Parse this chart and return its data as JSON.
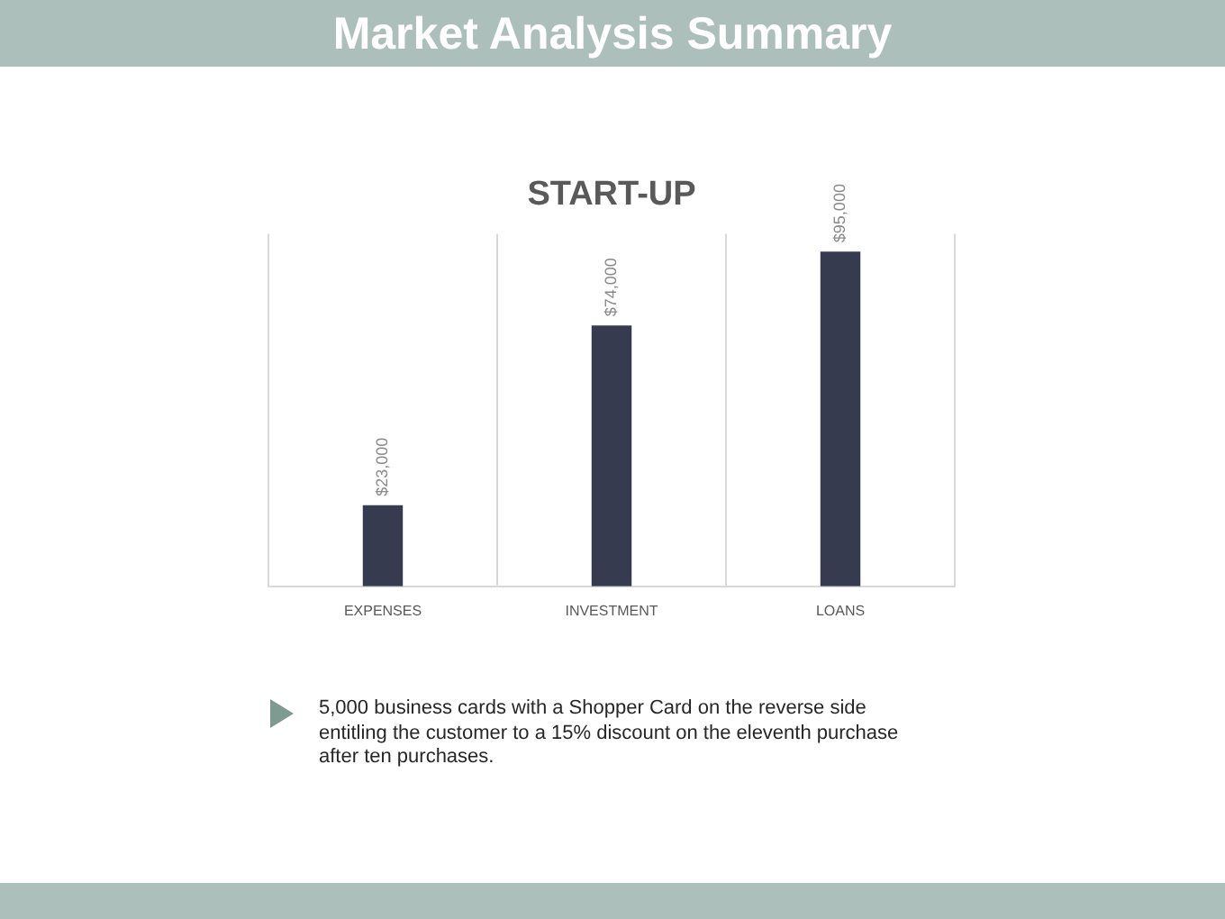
{
  "chart_data": {
    "type": "bar",
    "title": "Market Analysis Summary",
    "subtitle": "START-UP",
    "categories": [
      "EXPENSES",
      "INVESTMENT",
      "LOANS"
    ],
    "values": [
      23000,
      74000,
      95000
    ],
    "color": "#373b4f",
    "value_labels": [
      "$23,000",
      "$74,000",
      "$95,000"
    ],
    "grid": "x",
    "tick_labels": "x",
    "annotations": [
      "5,000 business cards with a Shopper Card on the reverse side entitling the customer to a 15% discount on the eleventh purchase after ten purchases."
    ]
  }
}
